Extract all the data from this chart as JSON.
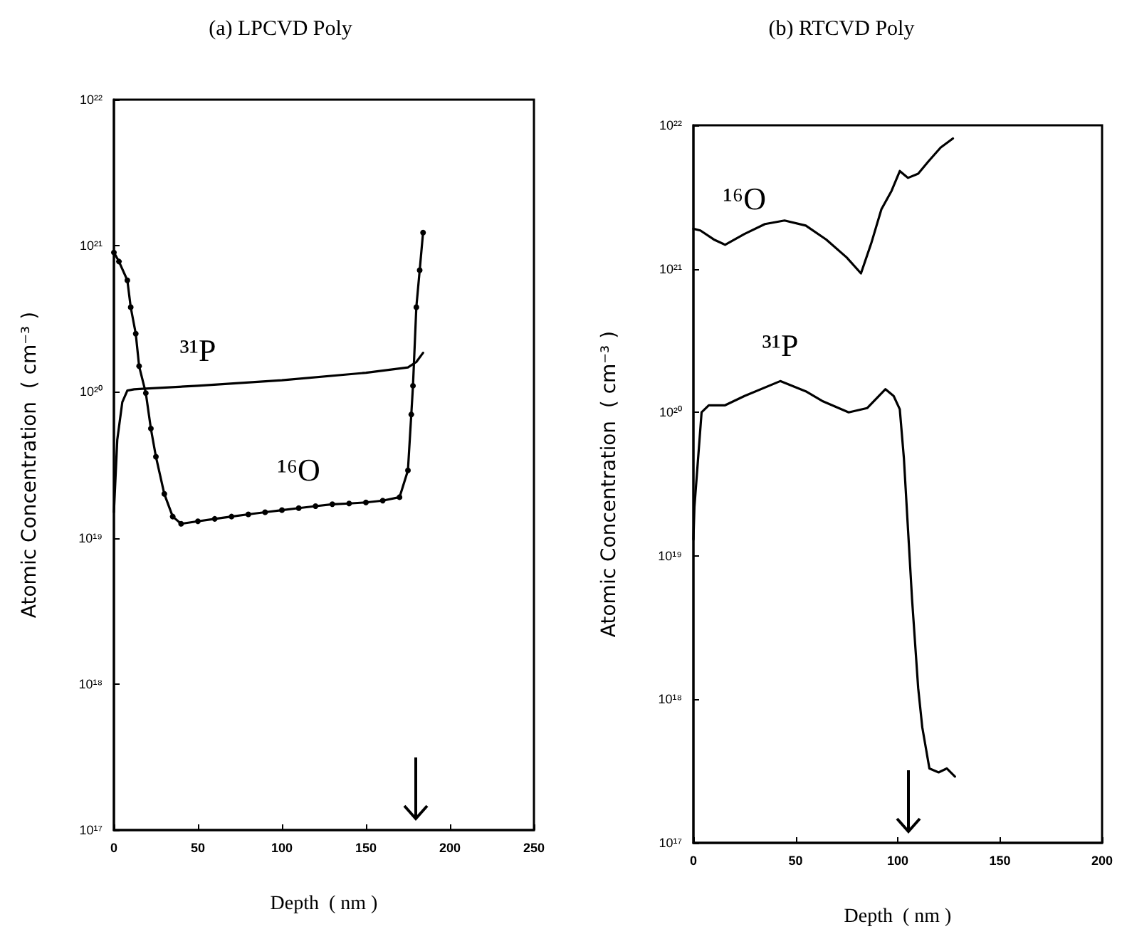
{
  "chart_data": [
    {
      "type": "line",
      "title": "(a) LPCVD Poly",
      "xlabel": "Depth  ( nm )",
      "ylabel": "Atomic Concentration  ( cm⁻³ )",
      "log": "y",
      "grid": false,
      "legend": false,
      "marker": "none",
      "line_style": "solid",
      "xlim": [
        0,
        250
      ],
      "xticks": [
        0,
        50,
        100,
        150,
        200,
        250
      ],
      "ylim": [
        1e+17,
        1e+22
      ],
      "yticks": [
        {
          "value": 1e+17,
          "label": "10¹⁷"
        },
        {
          "value": 1e+18,
          "label": "10¹⁸"
        },
        {
          "value": 1e+19,
          "label": "10¹⁹"
        },
        {
          "value": 1e+20,
          "label": "10²⁰"
        },
        {
          "value": 1e+21,
          "label": "10²¹"
        },
        {
          "value": 1e+22,
          "label": "10²²"
        }
      ],
      "series": [
        {
          "name": "³¹P",
          "color": "#000000",
          "x": [
            0,
            2,
            5,
            8,
            12,
            17,
            50,
            100,
            150,
            175,
            180,
            184
          ],
          "values": [
            1.5e+19,
            4.7e+19,
            8.5e+19,
            1.02e+20,
            1.04e+20,
            1.05e+20,
            1.1e+20,
            1.2e+20,
            1.35e+20,
            1.47e+20,
            1.6e+20,
            1.85e+20
          ]
        },
        {
          "name": "¹⁶O",
          "color": "#000000",
          "marker": "circle",
          "x": [
            0,
            3,
            8,
            10,
            13,
            15,
            19,
            22,
            25,
            30,
            35,
            40,
            50,
            60,
            70,
            80,
            90,
            100,
            110,
            120,
            130,
            140,
            150,
            160,
            170,
            175,
            177,
            178,
            180,
            182,
            184
          ],
          "values": [
            9e+20,
            7.8e+20,
            5.8e+20,
            3.8e+20,
            2.5e+20,
            1.5e+20,
            9.8e+19,
            5.6e+19,
            3.6e+19,
            2e+19,
            1.4e+19,
            1.25e+19,
            1.3e+19,
            1.35e+19,
            1.4e+19,
            1.45e+19,
            1.5e+19,
            1.55e+19,
            1.6e+19,
            1.65e+19,
            1.7e+19,
            1.72e+19,
            1.75e+19,
            1.8e+19,
            1.9e+19,
            2.9e+19,
            7e+19,
            1.1e+20,
            3.8e+20,
            6.8e+20,
            1.23e+21
          ]
        }
      ]
    },
    {
      "type": "line",
      "title": "(b) RTCVD Poly",
      "xlabel": "Depth  ( nm )",
      "ylabel": "Atomic Concentration  ( cm⁻³ )",
      "log": "y",
      "grid": false,
      "legend": false,
      "marker": "none",
      "line_style": "solid",
      "xlim": [
        0,
        200
      ],
      "xticks": [
        0,
        50,
        100,
        150,
        200
      ],
      "ylim": [
        1e+17,
        1e+22
      ],
      "yticks": [
        {
          "value": 1e+17,
          "label": "10¹⁷"
        },
        {
          "value": 1e+18,
          "label": "10¹⁸"
        },
        {
          "value": 1e+19,
          "label": "10¹⁹"
        },
        {
          "value": 1e+20,
          "label": "10²⁰"
        },
        {
          "value": 1e+21,
          "label": "10²¹"
        },
        {
          "value": 1e+22,
          "label": "10²²"
        }
      ],
      "series": [
        {
          "name": "¹⁶O",
          "color": "#000000",
          "x": [
            0,
            3.4,
            10,
            15.5,
            25,
            35,
            44.6,
            55,
            65,
            75,
            82,
            87,
            92,
            97,
            101,
            105,
            110,
            115,
            121,
            127
          ],
          "values": [
            1.9e+21,
            1.85e+21,
            1.6e+21,
            1.47e+21,
            1.75e+21,
            2.05e+21,
            2.17e+21,
            2e+21,
            1.6e+21,
            1.2e+21,
            9.3e+20,
            1.5e+21,
            2.6e+21,
            3.5e+21,
            4.8e+21,
            4.3e+21,
            4.6e+21,
            5.6e+21,
            7e+21,
            8.1e+21
          ]
        },
        {
          "name": "³¹P",
          "color": "#000000",
          "x": [
            0,
            0.5,
            4,
            7.5,
            15.5,
            25,
            42.5,
            55,
            63,
            76,
            85,
            94,
            98,
            101,
            103,
            107,
            110,
            112,
            115.5,
            120,
            124,
            128
          ],
          "values": [
            1.3e+19,
            2.2e+19,
            1e+20,
            1.12e+20,
            1.12e+20,
            1.3e+20,
            1.65e+20,
            1.4e+20,
            1.2e+20,
            1e+20,
            1.07e+20,
            1.45e+20,
            1.3e+20,
            1.05e+20,
            4.8e+19,
            5e+18,
            1.2e+18,
            6.4e+17,
            3.3e+17,
            3.1e+17,
            3.3e+17,
            2.9e+17
          ]
        }
      ]
    }
  ]
}
